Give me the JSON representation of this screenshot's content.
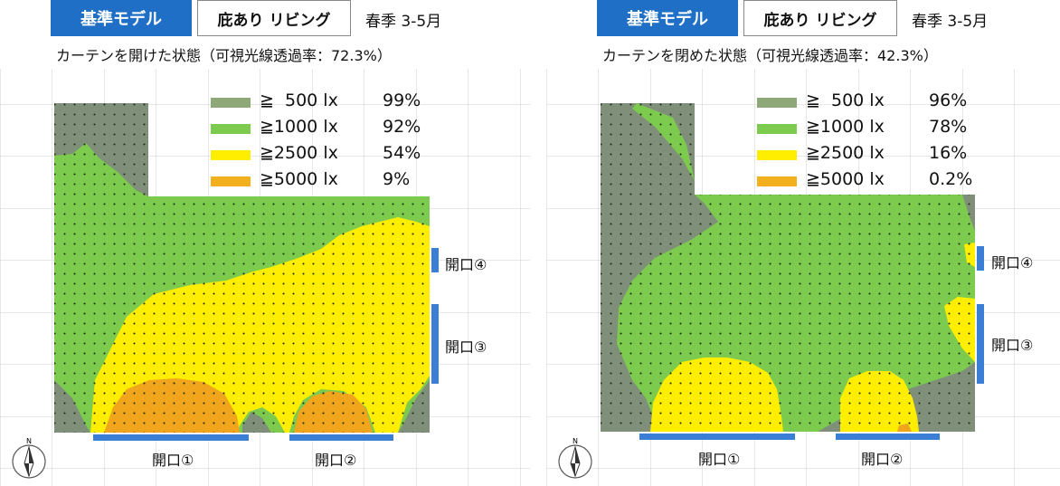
{
  "colors": {
    "blue_accent": "#1f6fc6",
    "lx500": "#8fa878",
    "lx1000": "#7ccb4e",
    "lx2500": "#ffee00",
    "lx5000": "#f2b01e",
    "dark_zone": "#7f8f7a",
    "orange_zone": "#f0a51c",
    "opening_bar": "#3a7fd5"
  },
  "panels": [
    {
      "model_tag": "基準モデル",
      "room_tag": "庇あり リビング",
      "season": "春季 3-5月",
      "state": "カーテンを開けた状態（可視光線透過率：72.3%）",
      "legend": [
        {
          "label": "≧  500 lx",
          "percent": "99%",
          "color": "lx500"
        },
        {
          "label": "≧1000 lx",
          "percent": "92%",
          "color": "lx1000"
        },
        {
          "label": "≧2500 lx",
          "percent": "54%",
          "color": "lx2500"
        },
        {
          "label": "≧5000 lx",
          "percent": "9%",
          "color": "lx5000"
        }
      ],
      "openings": [
        "開口①",
        "開口②",
        "開口③",
        "開口④"
      ],
      "compass_label": "N"
    },
    {
      "model_tag": "基準モデル",
      "room_tag": "庇あり リビング",
      "season": "春季 3-5月",
      "state": "カーテンを閉めた状態（可視光線透過率：42.3%）",
      "legend": [
        {
          "label": "≧  500 lx",
          "percent": "96%",
          "color": "lx500"
        },
        {
          "label": "≧1000 lx",
          "percent": "78%",
          "color": "lx1000"
        },
        {
          "label": "≧2500 lx",
          "percent": "16%",
          "color": "lx2500"
        },
        {
          "label": "≧5000 lx",
          "percent": "0.2%",
          "color": "lx5000"
        }
      ],
      "openings": [
        "開口①",
        "開口②",
        "開口③",
        "開口④"
      ],
      "compass_label": "N"
    }
  ]
}
